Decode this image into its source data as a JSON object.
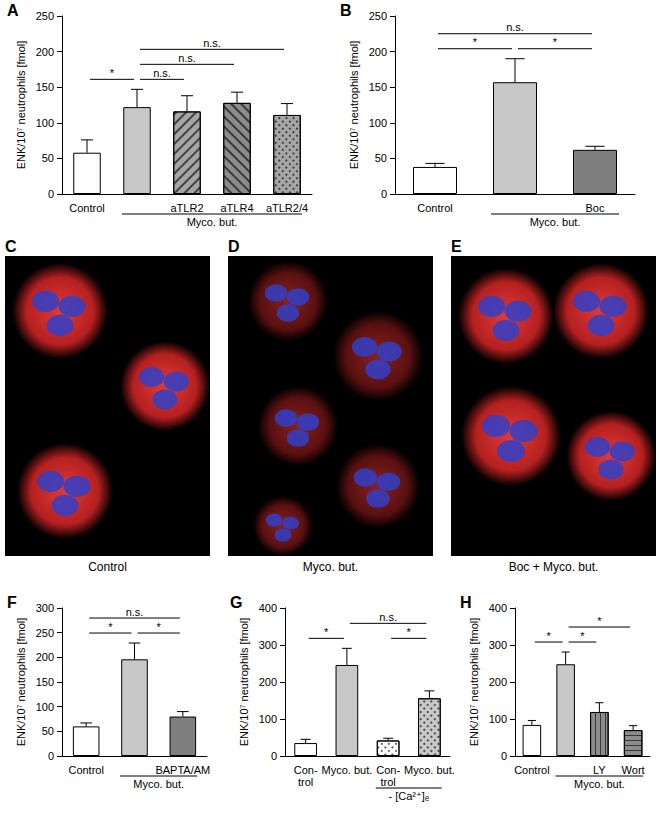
{
  "chart_data": [
    {
      "type": "bar",
      "title": "A",
      "categories": [
        "Control",
        null,
        "aTLR2",
        "aTLR4",
        "aTLR2/4"
      ],
      "values": [
        58,
        122,
        116,
        128,
        111
      ],
      "errors": [
        18,
        25,
        22,
        15,
        16
      ],
      "colors": [
        "#ffffff",
        "#c8c8c8",
        "#a6a6a6",
        "#8c8c8c",
        "#a6a6a6"
      ],
      "ylabel": "ENK/10⁷ neutrophils [fmol]",
      "ylim": [
        0,
        250
      ],
      "yticks": [
        0,
        50,
        100,
        150,
        200,
        250
      ],
      "grid": false,
      "annotations": [
        {
          "text": "*",
          "from": 0,
          "to": 1
        },
        {
          "text": "n.s.",
          "from": 1,
          "to": 2
        },
        {
          "text": "n.s.",
          "from": 1,
          "to": 3
        },
        {
          "text": "n.s.",
          "from": 1,
          "to": 4
        }
      ],
      "group_label": {
        "text": "Myco. but.",
        "from": 1,
        "to": 4
      }
    },
    {
      "type": "bar",
      "title": "B",
      "categories": [
        "Control",
        null,
        "Boc"
      ],
      "values": [
        38,
        157,
        62
      ],
      "errors": [
        5,
        33,
        5
      ],
      "colors": [
        "#ffffff",
        "#c8c8c8",
        "#7f7f7f"
      ],
      "ylabel": "ENK/10⁷ neutrophils [fmol]",
      "ylim": [
        0,
        250
      ],
      "yticks": [
        0,
        50,
        100,
        150,
        200,
        250
      ],
      "grid": false,
      "annotations": [
        {
          "text": "*",
          "from": 0,
          "to": 1
        },
        {
          "text": "*",
          "from": 1,
          "to": 2
        },
        {
          "text": "n.s.",
          "from": 0,
          "to": 2
        }
      ],
      "group_label": {
        "text": "Myco. but.",
        "from": 1,
        "to": 2
      }
    },
    {
      "type": "bar",
      "title": "F",
      "categories": [
        "Control",
        null,
        "BAPTA/AM"
      ],
      "values": [
        60,
        196,
        80
      ],
      "errors": [
        7,
        33,
        10
      ],
      "colors": [
        "#ffffff",
        "#c8c8c8",
        "#7f7f7f"
      ],
      "ylabel": "ENK/10⁷ neutrophils [fmol]",
      "ylim": [
        0,
        300
      ],
      "yticks": [
        0,
        50,
        100,
        150,
        200,
        250,
        300
      ],
      "grid": false,
      "annotations": [
        {
          "text": "*",
          "from": 0,
          "to": 1
        },
        {
          "text": "*",
          "from": 1,
          "to": 2
        },
        {
          "text": "n.s.",
          "from": 0,
          "to": 2
        }
      ],
      "group_label": {
        "text": "Myco. but.",
        "from": 1,
        "to": 2
      }
    },
    {
      "type": "bar",
      "title": "G",
      "categories": [
        "Con-\ntrol",
        "Myco. but.",
        "Con-\ntrol",
        "Myco. but."
      ],
      "values": [
        35,
        246,
        42,
        156
      ],
      "errors": [
        10,
        45,
        6,
        20
      ],
      "colors": [
        "#ffffff",
        "#c8c8c8",
        "#ffffff",
        "#c8c8c8"
      ],
      "ylabel": "ENK/10⁷ neutrophils [fmol]",
      "ylim": [
        0,
        400
      ],
      "yticks": [
        0,
        100,
        200,
        300,
        400
      ],
      "grid": false,
      "annotations": [
        {
          "text": "*",
          "from": 0,
          "to": 1
        },
        {
          "text": "*",
          "from": 2,
          "to": 3
        },
        {
          "text": "n.s.",
          "from": 1,
          "to": 3
        }
      ],
      "group_label": {
        "text": "- [Ca²⁺]ₑ",
        "from": 2,
        "to": 3
      }
    },
    {
      "type": "bar",
      "title": "H",
      "categories": [
        "Control",
        null,
        "LY",
        "Wort"
      ],
      "values": [
        84,
        248,
        119,
        70
      ],
      "errors": [
        12,
        33,
        25,
        12
      ],
      "colors": [
        "#ffffff",
        "#c8c8c8",
        "#8c8c8c",
        "#8c8c8c"
      ],
      "ylabel": "ENK/10⁷ neutrophils [fmol]",
      "ylim": [
        0,
        400
      ],
      "yticks": [
        0,
        100,
        200,
        300,
        400
      ],
      "grid": false,
      "annotations": [
        {
          "text": "*",
          "from": 0,
          "to": 1
        },
        {
          "text": "*",
          "from": 1,
          "to": 2
        },
        {
          "text": "*",
          "from": 1,
          "to": 3
        }
      ],
      "group_label": {
        "text": "Myco. but.",
        "from": 1,
        "to": 3
      }
    }
  ],
  "images": [
    {
      "title": "C",
      "caption": "Control"
    },
    {
      "title": "D",
      "caption": "Myco. but."
    },
    {
      "title": "E",
      "caption": "Boc + Myco. but."
    }
  ]
}
